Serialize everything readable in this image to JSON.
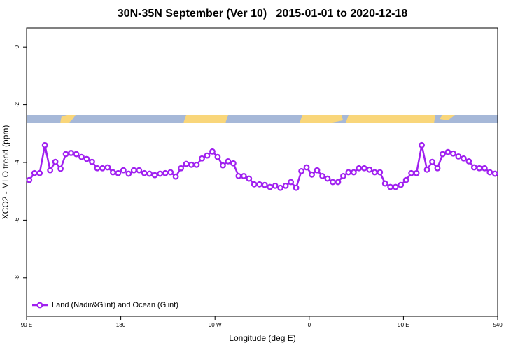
{
  "chart_data": {
    "type": "line",
    "title": "30N-35N September (Ver 10)   2015-01-01 to 2020-12-18",
    "x_label": "Longitude (deg E)",
    "y_label": "XCO2 - MLO trend (ppm)",
    "xlim": [
      90,
      540
    ],
    "ylim": [
      -9.34,
      0.66
    ],
    "xticks": [
      {
        "value": 90,
        "label": "90 E"
      },
      180,
      {
        "value": 270,
        "label": "90 W"
      },
      {
        "value": 360,
        "label": "0"
      },
      {
        "value": 450,
        "label": "90 E"
      },
      540
    ],
    "yticks": [
      0,
      -2,
      -4,
      -6,
      -8
    ],
    "legend": "bottom-left",
    "x": [
      92.5,
      97.5,
      102.5,
      107.5,
      112.5,
      117.5,
      122.5,
      127.5,
      132.5,
      137.5,
      142.5,
      147.5,
      152.5,
      157.5,
      162.5,
      167.5,
      172.5,
      177.5,
      182.5,
      187.5,
      192.5,
      197.5,
      202.5,
      207.5,
      212.5,
      217.5,
      222.5,
      227.5,
      232.5,
      237.5,
      242.5,
      247.5,
      252.5,
      257.5,
      262.5,
      267.5,
      272.5,
      277.5,
      282.5,
      287.5,
      292.5,
      297.5,
      302.5,
      307.5,
      312.5,
      317.5,
      322.5,
      327.5,
      332.5,
      337.5,
      342.5,
      347.5,
      352.5,
      357.5,
      362.5,
      367.5,
      372.5,
      377.5,
      382.5,
      387.5,
      392.5,
      397.5,
      402.5,
      407.5,
      412.5,
      417.5,
      422.5,
      427.5,
      432.5,
      437.5,
      442.5,
      447.5,
      452.5,
      457.5,
      462.5,
      467.5,
      472.5,
      477.5,
      482.5,
      487.5,
      492.5,
      497.5,
      502.5,
      507.5,
      512.5,
      517.5,
      522.5,
      527.5,
      532.5,
      537.5
    ],
    "series": [
      {
        "name": "Land (Nadir&Glint) and Ocean (Glint)",
        "color": "#a020f0",
        "values": [
          -4.61,
          -4.37,
          -4.37,
          -3.4,
          -4.27,
          -3.98,
          -4.22,
          -3.71,
          -3.67,
          -3.71,
          -3.81,
          -3.88,
          -3.98,
          -4.2,
          -4.2,
          -4.17,
          -4.34,
          -4.37,
          -4.27,
          -4.39,
          -4.27,
          -4.27,
          -4.37,
          -4.39,
          -4.44,
          -4.39,
          -4.37,
          -4.34,
          -4.49,
          -4.2,
          -4.05,
          -4.08,
          -4.08,
          -3.86,
          -3.76,
          -3.62,
          -3.81,
          -4.1,
          -3.96,
          -4.03,
          -4.47,
          -4.47,
          -4.56,
          -4.76,
          -4.76,
          -4.78,
          -4.85,
          -4.81,
          -4.88,
          -4.81,
          -4.68,
          -4.88,
          -4.3,
          -4.17,
          -4.42,
          -4.27,
          -4.47,
          -4.56,
          -4.68,
          -4.68,
          -4.47,
          -4.34,
          -4.34,
          -4.2,
          -4.2,
          -4.25,
          -4.34,
          -4.34,
          -4.73,
          -4.85,
          -4.85,
          -4.78,
          -4.61,
          -4.37,
          -4.37,
          -3.4,
          -4.25,
          -3.98,
          -4.2,
          -3.71,
          -3.64,
          -3.69,
          -3.79,
          -3.86,
          -3.96,
          -4.17,
          -4.2,
          -4.2,
          -4.34,
          -4.39
        ]
      }
    ]
  }
}
